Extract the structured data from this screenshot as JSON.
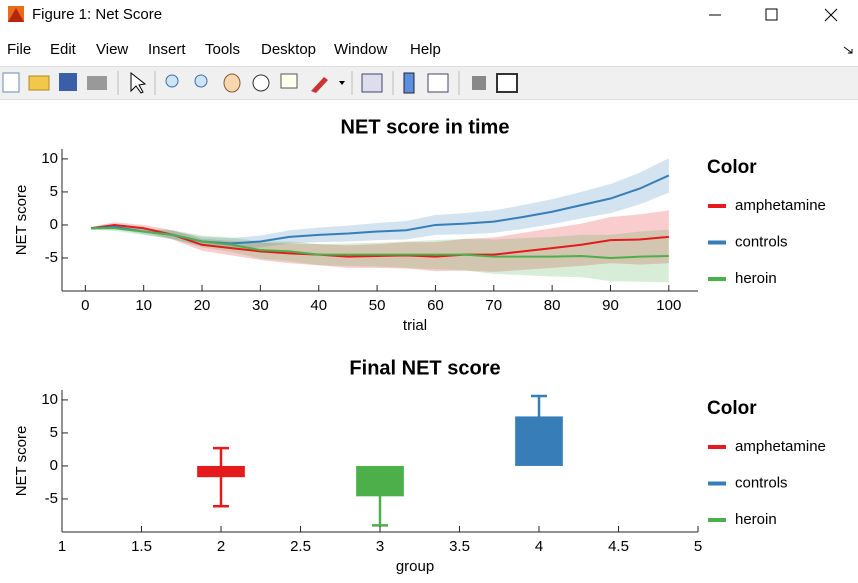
{
  "window": {
    "title": "Figure 1: Net Score",
    "menu": [
      "File",
      "Edit",
      "View",
      "Insert",
      "Tools",
      "Desktop",
      "Window",
      "Help"
    ]
  },
  "chart_data": [
    {
      "type": "line",
      "title": "NET score in time",
      "xlabel": "trial",
      "ylabel": "NET score",
      "legend_title": "Color",
      "legend": "right",
      "xlim": [
        -4,
        105
      ],
      "ylim": [
        -10,
        11.5
      ],
      "xticks": [
        0,
        10,
        20,
        30,
        40,
        50,
        60,
        70,
        80,
        90,
        100
      ],
      "yticks": [
        -5,
        0,
        5,
        10
      ],
      "x": [
        1,
        5,
        10,
        15,
        20,
        25,
        30,
        35,
        40,
        45,
        50,
        55,
        60,
        65,
        70,
        75,
        80,
        85,
        90,
        95,
        100
      ],
      "series": [
        {
          "name": "amphetamine",
          "color": "#e41a1c",
          "values": [
            -0.5,
            0,
            -0.5,
            -1.5,
            -3,
            -3.5,
            -4,
            -4.3,
            -4.5,
            -4.8,
            -4.7,
            -4.6,
            -4.8,
            -4.5,
            -4.5,
            -4,
            -3.5,
            -3,
            -2.3,
            -2.2,
            -1.8
          ],
          "upper": [
            -0.3,
            0.4,
            0,
            -0.8,
            -2.1,
            -2.4,
            -2.7,
            -2.8,
            -2.9,
            -3.1,
            -2.9,
            -2.6,
            -2.6,
            -2.1,
            -1.9,
            -1.2,
            -0.5,
            0.2,
            1.2,
            1.6,
            2.2
          ],
          "lower": [
            -0.7,
            -0.4,
            -1,
            -2.2,
            -3.9,
            -4.6,
            -5.3,
            -5.8,
            -6.1,
            -6.5,
            -6.5,
            -6.6,
            -7,
            -6.9,
            -7.1,
            -6.8,
            -6.5,
            -6.2,
            -5.8,
            -6,
            -5.8
          ]
        },
        {
          "name": "controls",
          "color": "#377eb8",
          "values": [
            -0.5,
            -0.3,
            -1,
            -1.5,
            -2.5,
            -2.8,
            -2.5,
            -1.8,
            -1.5,
            -1.3,
            -1,
            -0.8,
            0,
            0.2,
            0.5,
            1.2,
            2,
            3,
            4,
            5.5,
            7.5
          ],
          "upper": [
            -0.3,
            0,
            -0.6,
            -0.9,
            -1.8,
            -2,
            -1.6,
            -0.8,
            -0.4,
            -0.1,
            0.3,
            0.6,
            1.5,
            1.8,
            2.2,
            3,
            3.9,
            5,
            6.2,
            7.9,
            10.1
          ],
          "lower": [
            -0.7,
            -0.6,
            -1.4,
            -2.1,
            -3.2,
            -3.6,
            -3.4,
            -2.8,
            -2.6,
            -2.5,
            -2.3,
            -2.2,
            -1.5,
            -1.4,
            -1.2,
            -0.6,
            0.1,
            1,
            1.8,
            3.1,
            4.9
          ]
        },
        {
          "name": "heroin",
          "color": "#4daf4a",
          "values": [
            -0.5,
            -0.5,
            -1,
            -1.5,
            -2.5,
            -3,
            -3.8,
            -4,
            -4.5,
            -4.5,
            -4.5,
            -4.5,
            -4.5,
            -4.5,
            -4.8,
            -4.8,
            -4.8,
            -4.7,
            -5,
            -4.8,
            -4.7
          ],
          "upper": [
            -0.3,
            -0.1,
            -0.5,
            -0.8,
            -1.6,
            -1.9,
            -2.5,
            -2.5,
            -2.9,
            -2.8,
            -2.7,
            -2.5,
            -2.3,
            -2.1,
            -2.2,
            -2,
            -1.8,
            -1.5,
            -1.5,
            -1,
            -0.7
          ],
          "lower": [
            -0.7,
            -0.9,
            -1.5,
            -2.2,
            -3.4,
            -4.1,
            -5.1,
            -5.5,
            -6.1,
            -6.2,
            -6.3,
            -6.5,
            -6.7,
            -6.9,
            -7.4,
            -7.6,
            -7.8,
            -7.9,
            -8.5,
            -8.6,
            -8.7
          ]
        }
      ]
    },
    {
      "type": "bar",
      "title": "Final NET score",
      "xlabel": "group",
      "ylabel": "NET score",
      "legend_title": "Color",
      "legend": "right",
      "xlim": [
        1,
        5
      ],
      "ylim": [
        -10,
        11.5
      ],
      "xticks": [
        1,
        1.5,
        2,
        2.5,
        3,
        3.5,
        4,
        4.5,
        5
      ],
      "yticks": [
        -5,
        0,
        5,
        10
      ],
      "series": [
        {
          "name": "amphetamine",
          "color": "#e41a1c",
          "x": [
            2
          ],
          "values": [
            -1.7
          ],
          "errors": [
            4.4
          ]
        },
        {
          "name": "controls",
          "color": "#377eb8",
          "x": [
            4
          ],
          "values": [
            7.5
          ],
          "errors": [
            3.1
          ]
        },
        {
          "name": "heroin",
          "color": "#4daf4a",
          "x": [
            3
          ],
          "values": [
            -4.6
          ],
          "errors": [
            4.4
          ]
        }
      ]
    }
  ]
}
